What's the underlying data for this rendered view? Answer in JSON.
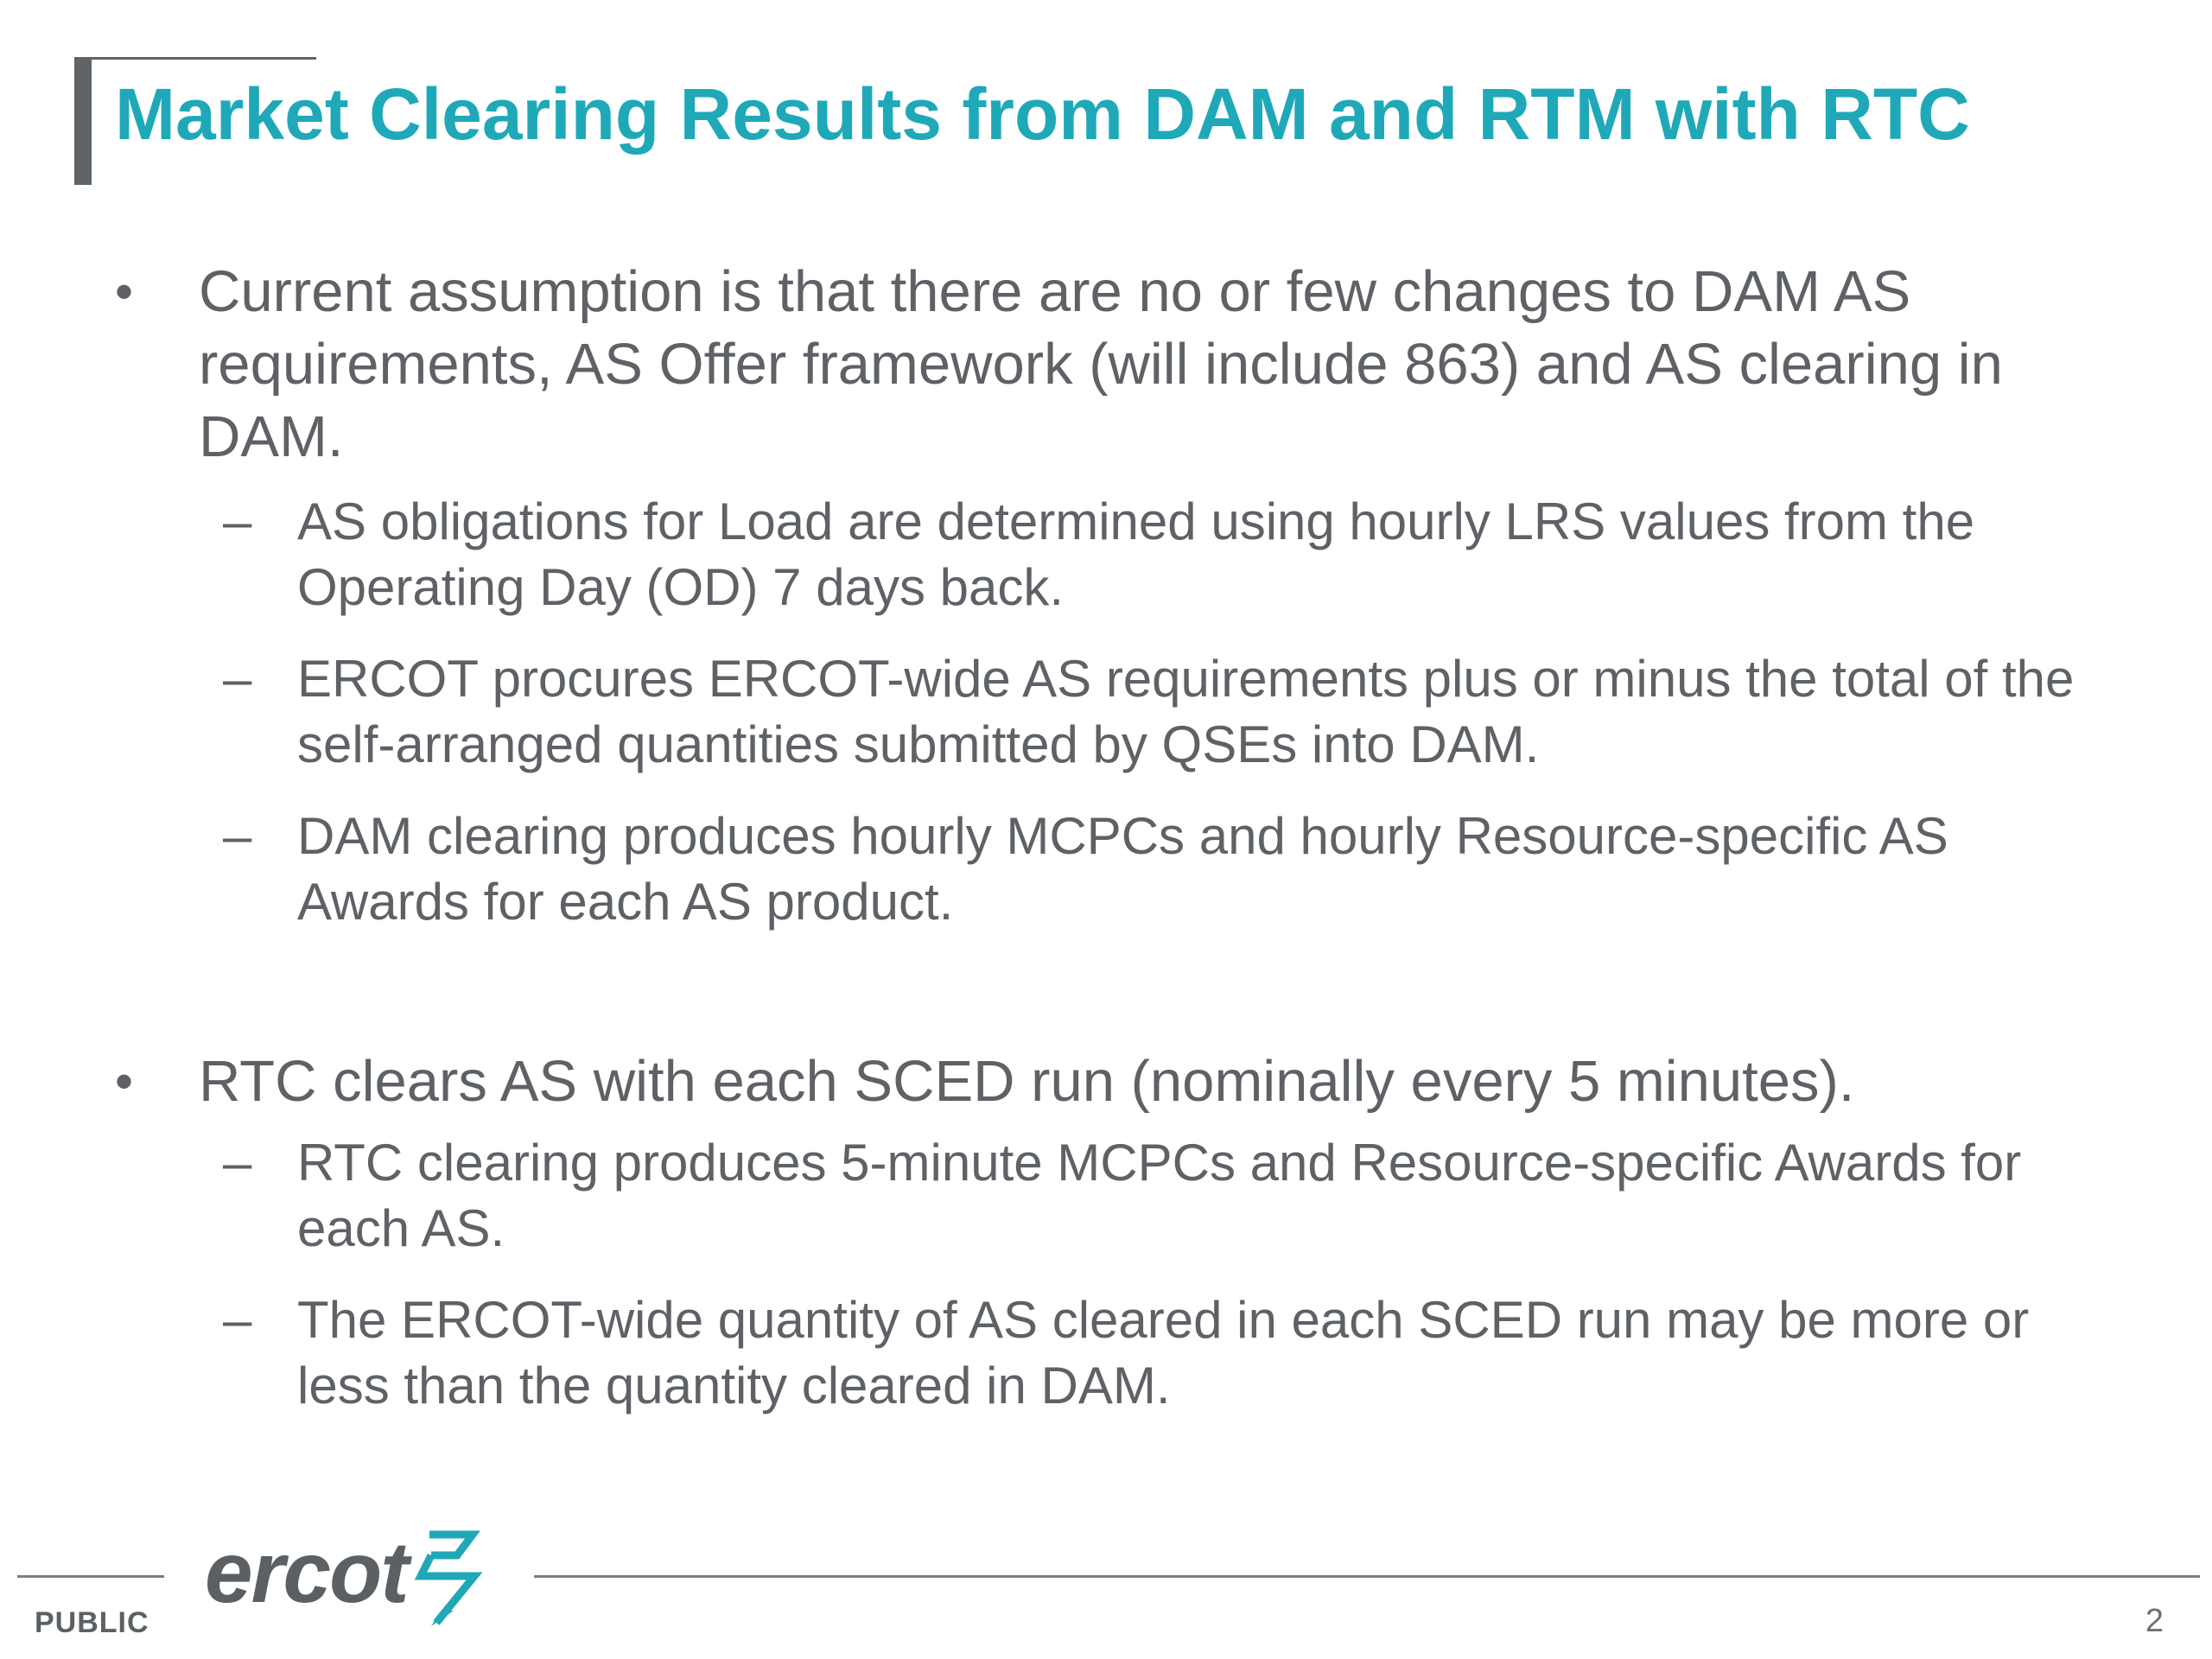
{
  "slide": {
    "title": "Market Clearing Results from DAM and RTM with RTC",
    "bullets": [
      {
        "marker": "•",
        "text": "Current assumption is that there are no or few changes to DAM AS requirements, AS Offer framework (will include 863) and AS clearing in DAM.",
        "sub": [
          {
            "marker": "–",
            "text": "AS obligations for Load are determined using hourly LRS values from the Operating Day (OD) 7 days back."
          },
          {
            "marker": "–",
            "text": "ERCOT procures ERCOT-wide AS requirements plus or minus the total of the self-arranged quantities submitted by QSEs into DAM."
          },
          {
            "marker": "–",
            "text": "DAM clearing produces hourly MCPCs and hourly Resource-specific AS Awards for each AS product."
          }
        ]
      },
      {
        "marker": "•",
        "text": "RTC clears AS with each SCED run (nominally every 5 minutes).",
        "sub": [
          {
            "marker": "–",
            "text": "RTC clearing produces 5-minute MCPCs and Resource-specific Awards for each AS."
          },
          {
            "marker": "–",
            "text": "The ERCOT-wide quantity of AS cleared in each SCED run may be more or less than the quantity cleared in DAM."
          }
        ]
      }
    ]
  },
  "footer": {
    "logo_text": "ercot",
    "classification": "PUBLIC",
    "page_number": "2"
  },
  "colors": {
    "title": "#1fa9b8",
    "body_text": "#5e6266",
    "accent_bar": "#5f6468",
    "logo_mark": "#1fa9b8"
  }
}
